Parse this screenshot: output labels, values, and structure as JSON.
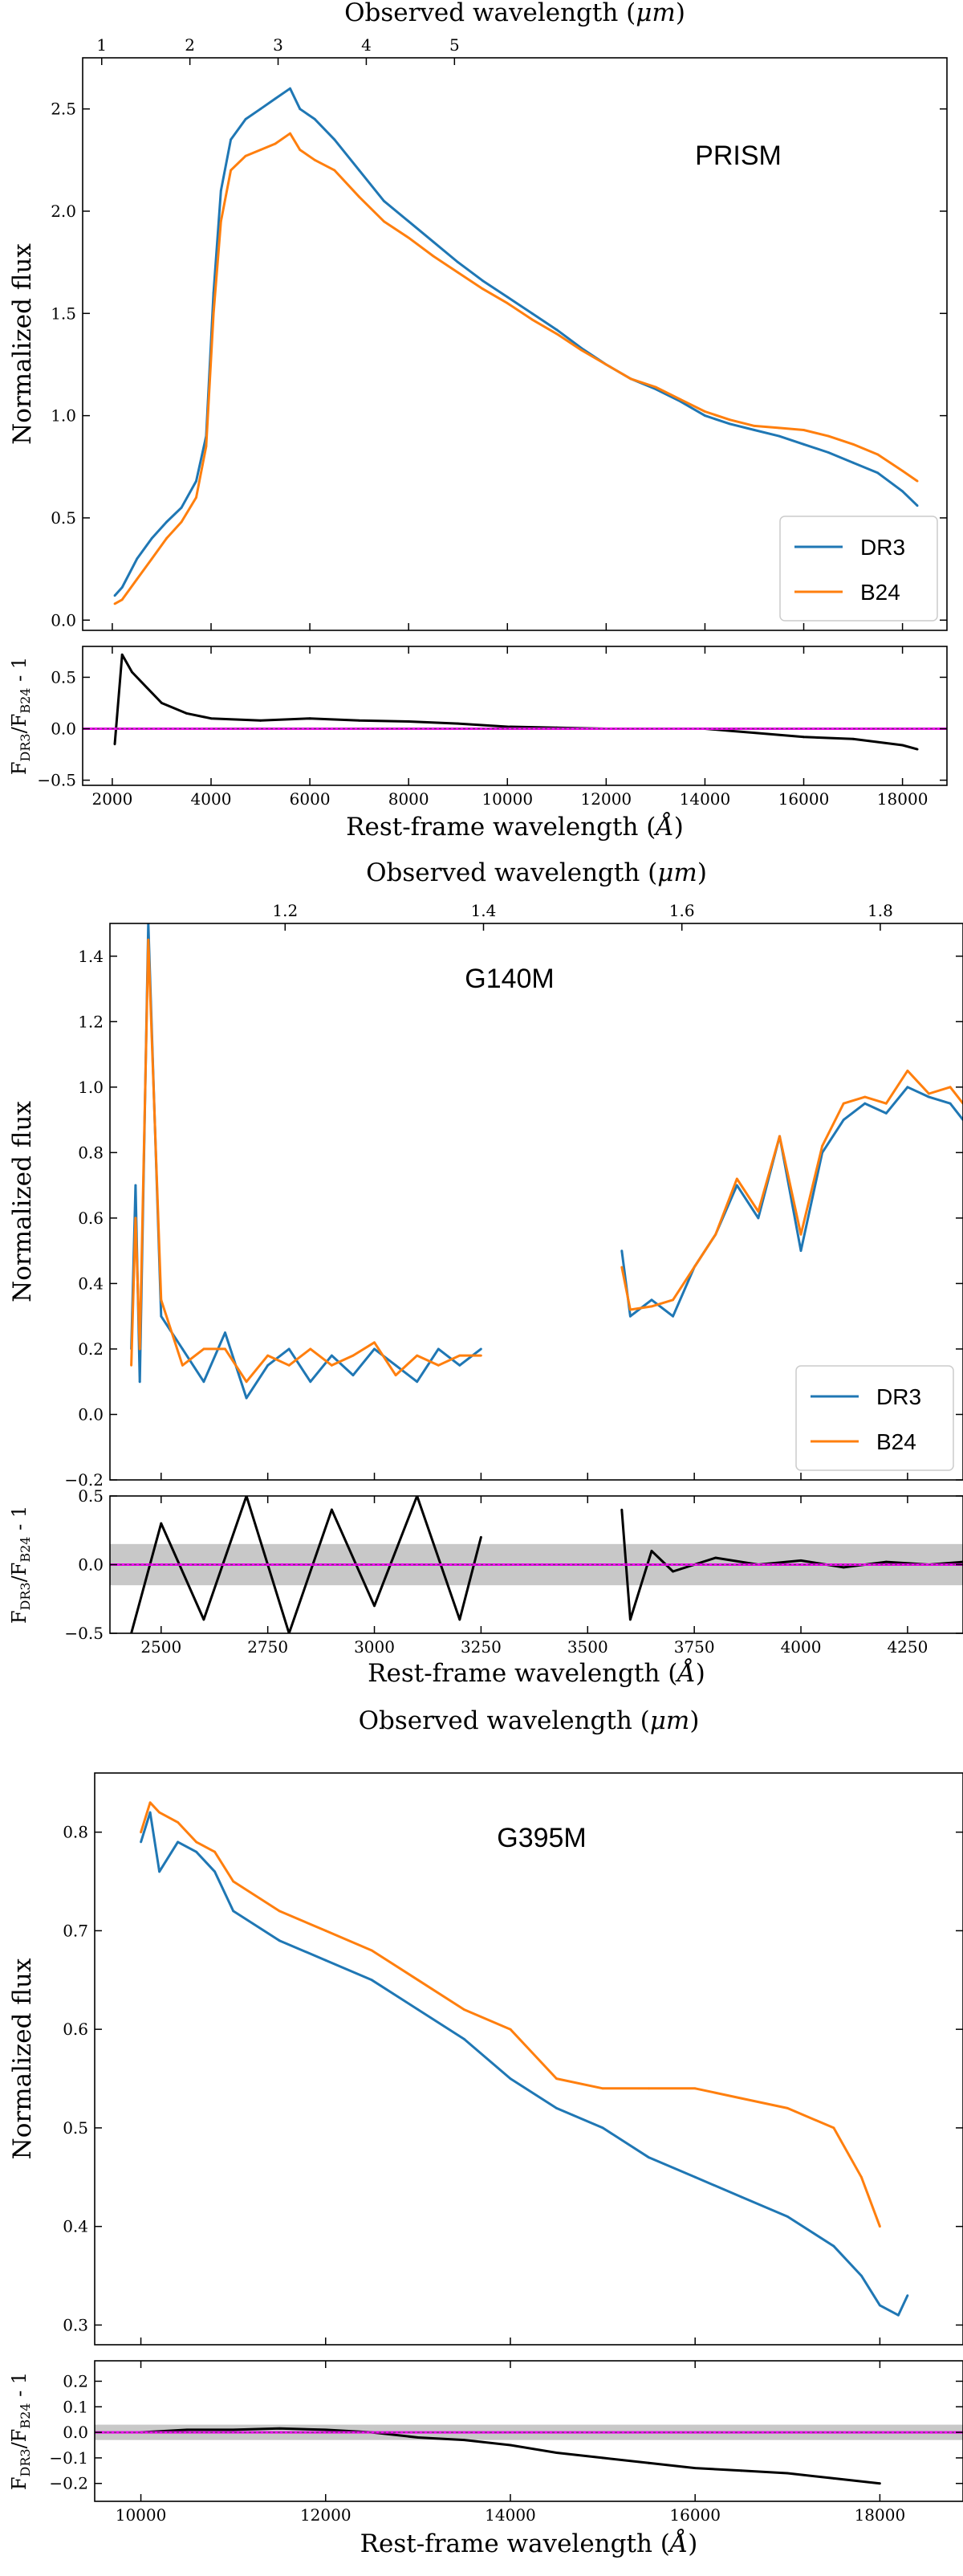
{
  "colors": {
    "dr3": "#1f77b4",
    "b24": "#ff7f0e",
    "ratio": "#000000",
    "zero_line": "#ee00ee",
    "band": "#c8c8c8"
  },
  "chart_data": [
    {
      "type": "line",
      "panel": "PRISM",
      "top_axis_label": "Observed wavelength (μm)",
      "bottom_axis_label": "Rest-frame wavelength (Å)",
      "ylabel": "Normalized flux",
      "ratio_ylabel": "F_DR3/F_B24 - 1",
      "legend_position": "lower-right",
      "xlim": [
        1400,
        18900
      ],
      "ylim": [
        -0.05,
        2.75
      ],
      "ratio_ylim": [
        -0.55,
        0.8
      ],
      "xticks": [
        2000,
        4000,
        6000,
        8000,
        10000,
        12000,
        14000,
        16000,
        18000
      ],
      "yticks": [
        0.0,
        0.5,
        1.0,
        1.5,
        2.0,
        2.5
      ],
      "ratio_yticks": [
        -0.5,
        0.0,
        0.5
      ],
      "top_ticks": [
        1,
        2,
        3,
        4,
        5
      ],
      "redshift_factor": 4.6,
      "band_half_width": 0,
      "series": [
        {
          "name": "DR3",
          "x": [
            2050,
            2200,
            2500,
            2800,
            3100,
            3400,
            3700,
            3900,
            4050,
            4200,
            4400,
            4700,
            5000,
            5300,
            5600,
            5800,
            6100,
            6500,
            7000,
            7500,
            8000,
            8500,
            9000,
            9500,
            10000,
            10500,
            11000,
            11500,
            12000,
            12500,
            13000,
            13500,
            14000,
            14500,
            15000,
            15500,
            16000,
            16500,
            17000,
            17500,
            18000,
            18300
          ],
          "y": [
            0.12,
            0.16,
            0.3,
            0.4,
            0.48,
            0.55,
            0.68,
            0.9,
            1.6,
            2.1,
            2.35,
            2.45,
            2.5,
            2.55,
            2.6,
            2.5,
            2.45,
            2.35,
            2.2,
            2.05,
            1.95,
            1.85,
            1.75,
            1.66,
            1.58,
            1.5,
            1.42,
            1.33,
            1.25,
            1.18,
            1.13,
            1.07,
            1.0,
            0.96,
            0.93,
            0.9,
            0.86,
            0.82,
            0.77,
            0.72,
            0.63,
            0.56
          ]
        },
        {
          "name": "B24",
          "x": [
            2050,
            2200,
            2500,
            2800,
            3100,
            3400,
            3700,
            3900,
            4050,
            4200,
            4400,
            4700,
            5000,
            5300,
            5600,
            5800,
            6100,
            6500,
            7000,
            7500,
            8000,
            8500,
            9000,
            9500,
            10000,
            10500,
            11000,
            11500,
            12000,
            12500,
            13000,
            13500,
            14000,
            14500,
            15000,
            15500,
            16000,
            16500,
            17000,
            17500,
            18000,
            18300
          ],
          "y": [
            0.08,
            0.1,
            0.2,
            0.3,
            0.4,
            0.48,
            0.6,
            0.85,
            1.5,
            1.95,
            2.2,
            2.27,
            2.3,
            2.33,
            2.38,
            2.3,
            2.25,
            2.2,
            2.07,
            1.95,
            1.87,
            1.78,
            1.7,
            1.62,
            1.55,
            1.47,
            1.4,
            1.32,
            1.25,
            1.18,
            1.14,
            1.08,
            1.02,
            0.98,
            0.95,
            0.94,
            0.93,
            0.9,
            0.86,
            0.81,
            0.73,
            0.68
          ]
        }
      ],
      "ratio_series": {
        "x": [
          2050,
          2200,
          2400,
          2700,
          3000,
          3500,
          4000,
          5000,
          6000,
          7000,
          8000,
          9000,
          10000,
          11000,
          12000,
          13000,
          14000,
          14500,
          15000,
          16000,
          17000,
          18000,
          18300
        ],
        "y": [
          -0.15,
          0.72,
          0.55,
          0.4,
          0.25,
          0.15,
          0.1,
          0.08,
          0.1,
          0.08,
          0.07,
          0.05,
          0.02,
          0.01,
          0.0,
          0.0,
          0.0,
          -0.02,
          -0.04,
          -0.08,
          -0.1,
          -0.16,
          -0.2
        ]
      }
    },
    {
      "type": "line",
      "panel": "G140M",
      "top_axis_label": "Observed wavelength (μm)",
      "bottom_axis_label": "Rest-frame wavelength (Å)",
      "ylabel": "Normalized flux",
      "ratio_ylabel": "F_DR3/F_B24 - 1",
      "legend_position": "lower-right",
      "xlim": [
        2380,
        4380
      ],
      "ylim": [
        -0.2,
        1.5
      ],
      "ratio_ylim": [
        -0.5,
        0.5
      ],
      "xticks": [
        2500,
        2750,
        3000,
        3250,
        3500,
        3750,
        4000,
        4250
      ],
      "yticks": [
        -0.2,
        0.0,
        0.2,
        0.4,
        0.6,
        0.8,
        1.0,
        1.2,
        1.4
      ],
      "ratio_yticks": [
        -0.5,
        0.0,
        0.5
      ],
      "top_ticks": [
        0.8,
        1.0,
        1.2,
        1.4,
        1.6,
        1.8
      ],
      "redshift_factor": 3.3,
      "band_half_width": 0.15,
      "gap": [
        3250,
        3580
      ],
      "series": [
        {
          "name": "DR3",
          "x": [
            2430,
            2440,
            2450,
            2470,
            2500,
            2550,
            2600,
            2650,
            2700,
            2750,
            2800,
            2850,
            2900,
            2950,
            3000,
            3050,
            3100,
            3150,
            3200,
            3250,
            3580,
            3600,
            3650,
            3700,
            3750,
            3800,
            3850,
            3900,
            3950,
            4000,
            4050,
            4100,
            4150,
            4200,
            4250,
            4300,
            4350,
            4380
          ],
          "y": [
            0.2,
            0.7,
            0.1,
            1.5,
            0.3,
            0.2,
            0.1,
            0.25,
            0.05,
            0.15,
            0.2,
            0.1,
            0.18,
            0.12,
            0.2,
            0.15,
            0.1,
            0.2,
            0.15,
            0.2,
            0.5,
            0.3,
            0.35,
            0.3,
            0.45,
            0.55,
            0.7,
            0.6,
            0.85,
            0.5,
            0.8,
            0.9,
            0.95,
            0.92,
            1.0,
            0.97,
            0.95,
            0.9
          ]
        },
        {
          "name": "B24",
          "x": [
            2430,
            2440,
            2450,
            2470,
            2500,
            2550,
            2600,
            2650,
            2700,
            2750,
            2800,
            2850,
            2900,
            2950,
            3000,
            3050,
            3100,
            3150,
            3200,
            3250,
            3580,
            3600,
            3650,
            3700,
            3750,
            3800,
            3850,
            3900,
            3950,
            4000,
            4050,
            4100,
            4150,
            4200,
            4250,
            4300,
            4350,
            4380
          ],
          "y": [
            0.15,
            0.6,
            0.2,
            1.45,
            0.35,
            0.15,
            0.2,
            0.2,
            0.1,
            0.18,
            0.15,
            0.2,
            0.15,
            0.18,
            0.22,
            0.12,
            0.18,
            0.15,
            0.18,
            0.18,
            0.45,
            0.32,
            0.33,
            0.35,
            0.45,
            0.55,
            0.72,
            0.62,
            0.85,
            0.55,
            0.82,
            0.95,
            0.97,
            0.95,
            1.05,
            0.98,
            1.0,
            0.95
          ]
        }
      ],
      "ratio_series": {
        "x": [
          2430,
          2500,
          2600,
          2700,
          2800,
          2900,
          3000,
          3100,
          3200,
          3250,
          3580,
          3600,
          3650,
          3700,
          3800,
          3900,
          4000,
          4100,
          4200,
          4300,
          4380
        ],
        "y": [
          -0.5,
          0.3,
          -0.4,
          0.5,
          -0.5,
          0.4,
          -0.3,
          0.5,
          -0.4,
          0.2,
          0.4,
          -0.4,
          0.1,
          -0.05,
          0.05,
          0.0,
          0.03,
          -0.02,
          0.02,
          0.0,
          0.02
        ]
      }
    },
    {
      "type": "line",
      "panel": "G395M",
      "top_axis_label": "Observed wavelength (μm)",
      "bottom_axis_label": "Rest-frame wavelength (Å)",
      "ylabel": "Normalized flux",
      "ratio_ylabel": "F_DR3/F_B24 - 1",
      "xlim": [
        9500,
        18900
      ],
      "ylim": [
        0.28,
        0.86
      ],
      "ratio_ylim": [
        -0.27,
        0.28
      ],
      "xticks": [
        10000,
        12000,
        14000,
        16000,
        18000
      ],
      "yticks": [
        0.3,
        0.4,
        0.5,
        0.6,
        0.7,
        0.8
      ],
      "ratio_yticks": [
        -0.2,
        -0.1,
        0.0,
        0.1,
        0.2
      ],
      "top_ticks": [
        3.0,
        3.5,
        4.0,
        4.5,
        5.0
      ],
      "redshift_factor": 0.2915,
      "band_half_width": 0.03,
      "series": [
        {
          "name": "DR3",
          "x": [
            10000,
            10100,
            10200,
            10400,
            10600,
            10800,
            11000,
            11500,
            12000,
            12500,
            13000,
            13500,
            14000,
            14500,
            15000,
            15500,
            16000,
            16500,
            17000,
            17500,
            17800,
            18000,
            18200,
            18300
          ],
          "y": [
            0.79,
            0.82,
            0.76,
            0.79,
            0.78,
            0.76,
            0.72,
            0.69,
            0.67,
            0.65,
            0.62,
            0.59,
            0.55,
            0.52,
            0.5,
            0.47,
            0.45,
            0.43,
            0.41,
            0.38,
            0.35,
            0.32,
            0.31,
            0.33
          ]
        },
        {
          "name": "B24",
          "x": [
            10000,
            10100,
            10200,
            10400,
            10600,
            10800,
            11000,
            11500,
            12000,
            12500,
            13000,
            13500,
            14000,
            14500,
            15000,
            15500,
            16000,
            16500,
            17000,
            17500,
            17800,
            18000
          ],
          "y": [
            0.8,
            0.83,
            0.82,
            0.81,
            0.79,
            0.78,
            0.75,
            0.72,
            0.7,
            0.68,
            0.65,
            0.62,
            0.6,
            0.55,
            0.54,
            0.54,
            0.54,
            0.53,
            0.52,
            0.5,
            0.45,
            0.4
          ]
        }
      ],
      "ratio_series": {
        "x": [
          10000,
          10500,
          11000,
          11500,
          12000,
          12500,
          13000,
          13500,
          14000,
          14500,
          15000,
          15500,
          16000,
          16500,
          17000,
          17500,
          18000
        ],
        "y": [
          0.0,
          0.01,
          0.01,
          0.015,
          0.01,
          0.0,
          -0.02,
          -0.03,
          -0.05,
          -0.08,
          -0.1,
          -0.12,
          -0.14,
          -0.15,
          -0.16,
          -0.18,
          -0.2
        ]
      }
    }
  ]
}
